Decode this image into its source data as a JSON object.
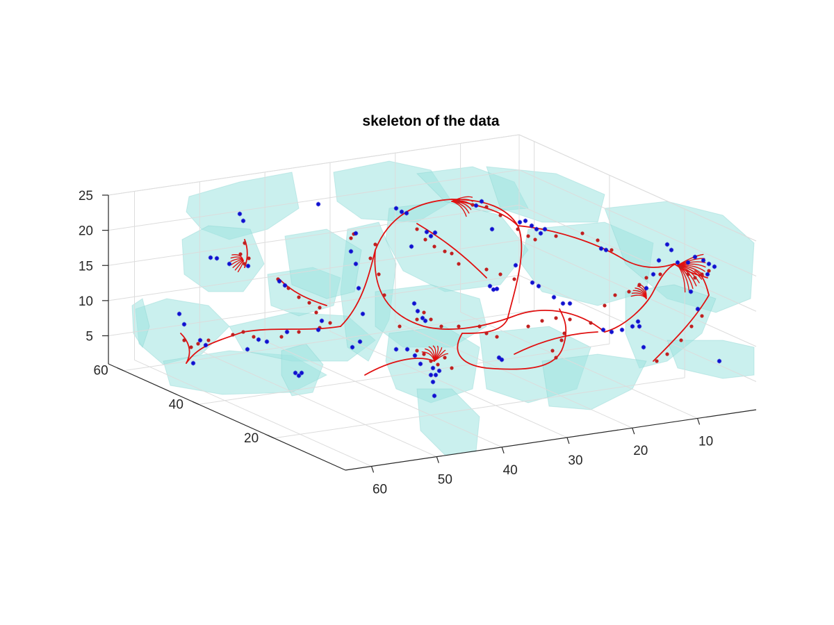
{
  "window": {
    "background": "#ffffff"
  },
  "chart_data": {
    "type": "scatter",
    "subtype": "3d-skeleton",
    "title": "skeleton of the data",
    "xlabel": "",
    "ylabel": "",
    "zlabel": "",
    "xlim": [
      1,
      64
    ],
    "ylim": [
      1,
      64
    ],
    "zlim": [
      1,
      25
    ],
    "x_ticks": [
      "10",
      "20",
      "30",
      "40",
      "50",
      "60"
    ],
    "y_ticks": [
      "20",
      "40",
      "60"
    ],
    "z_ticks": [
      "5",
      "10",
      "15",
      "20",
      "25"
    ],
    "grid": true,
    "legend": "none",
    "colors": {
      "volume_surface": "#9fe3e0",
      "skeleton_curve": "#e01010",
      "skeleton_points": "#c02020",
      "endpoints": "#1010d0",
      "grid": "#dcdcdc",
      "axis": "#262626"
    },
    "series": [
      {
        "kind": "isosurface"
      },
      {
        "kind": "curves"
      },
      {
        "kind": "points"
      }
    ]
  }
}
